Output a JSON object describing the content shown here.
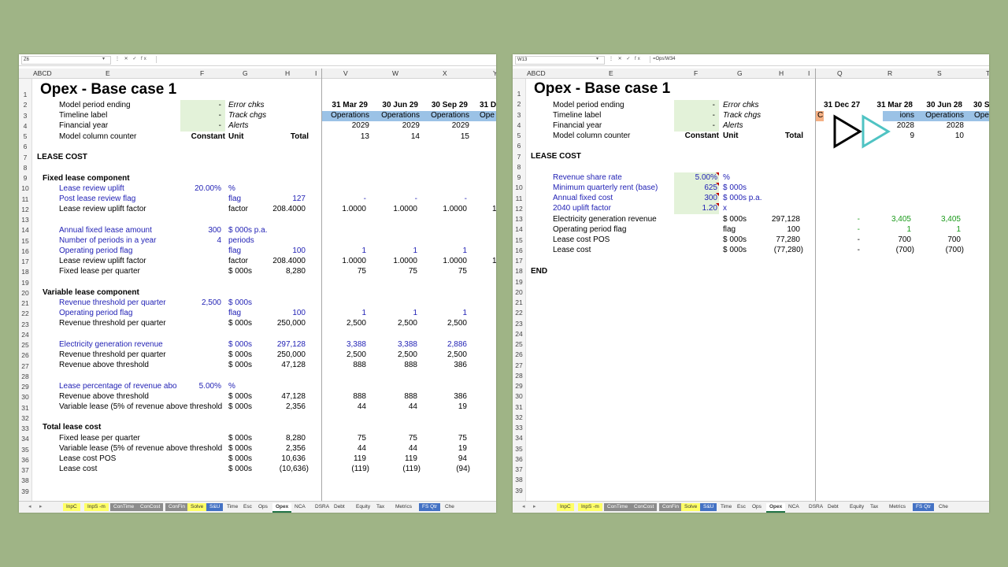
{
  "left": {
    "namebox": "Z6",
    "formula": "",
    "formula_icons": "⋮ ✕ ✓ fx",
    "columns": [
      "ABCD",
      "E",
      "F",
      "G",
      "H",
      "I",
      "V",
      "W",
      "X",
      "Y"
    ],
    "title": "Opex - Base case 1",
    "header_rows": {
      "model_period_ending": "Model period ending",
      "timeline_label": "Timeline label",
      "financial_year": "Financial year",
      "model_column_counter": "Model column counter",
      "dash": "-",
      "error_chks": "Error chks",
      "track_chgs": "Track chgs",
      "alerts": "Alerts",
      "constant": "Constant",
      "unit": "Unit",
      "total": "Total"
    },
    "timeline": [
      {
        "date": "31 Mar 29",
        "label": "Operations",
        "year": "2029",
        "counter": "13"
      },
      {
        "date": "30 Jun 29",
        "label": "Operations",
        "year": "2029",
        "counter": "14"
      },
      {
        "date": "30 Sep 29",
        "label": "Operations",
        "year": "2029",
        "counter": "15"
      },
      {
        "date": "31 D",
        "label": "Ope",
        "year": "",
        "counter": ""
      }
    ],
    "section_title": "LEASE COST",
    "fixed": {
      "heading": "Fixed lease component",
      "review_uplift": {
        "label": "Lease review uplift",
        "const": "20.00%",
        "unit": "%"
      },
      "post_review_flag": {
        "label": "Post lease review flag",
        "unit": "flag",
        "total": "127",
        "vals": [
          "-",
          "-",
          "-"
        ]
      },
      "review_factor": {
        "label": "Lease review uplift factor",
        "unit": "factor",
        "total": "208.4000",
        "vals": [
          "1.0000",
          "1.0000",
          "1.0000",
          "1"
        ]
      },
      "annual_fixed": {
        "label": "Annual fixed lease amount",
        "const": "300",
        "unit": "$ 000s p.a."
      },
      "periods": {
        "label": "Number of periods in a year",
        "const": "4",
        "unit": "periods"
      },
      "op_flag": {
        "label": "Operating period flag",
        "unit": "flag",
        "total": "100",
        "vals": [
          "1",
          "1",
          "1"
        ]
      },
      "review_factor2": {
        "label": "Lease review uplift factor",
        "unit": "factor",
        "total": "208.4000",
        "vals": [
          "1.0000",
          "1.0000",
          "1.0000",
          "1"
        ]
      },
      "fixed_per_q": {
        "label": "Fixed lease per quarter",
        "unit": "$ 000s",
        "total": "8,280",
        "vals": [
          "75",
          "75",
          "75"
        ]
      }
    },
    "variable": {
      "heading": "Variable lease component",
      "threshold_input": {
        "label": "Revenue threshold per quarter",
        "const": "2,500",
        "unit": "$ 000s"
      },
      "op_flag": {
        "label": "Operating period flag",
        "unit": "flag",
        "total": "100",
        "vals": [
          "1",
          "1",
          "1"
        ]
      },
      "threshold_calc": {
        "label": "Revenue threshold per quarter",
        "unit": "$ 000s",
        "total": "250,000",
        "vals": [
          "2,500",
          "2,500",
          "2,500"
        ]
      },
      "elec_rev": {
        "label": "Electricity generation revenue",
        "unit": "$ 000s",
        "total": "297,128",
        "vals": [
          "3,388",
          "3,388",
          "2,886"
        ]
      },
      "threshold_calc2": {
        "label": "Revenue threshold per quarter",
        "unit": "$ 000s",
        "total": "250,000",
        "vals": [
          "2,500",
          "2,500",
          "2,500"
        ]
      },
      "above": {
        "label": "Revenue above threshold",
        "unit": "$ 000s",
        "total": "47,128",
        "vals": [
          "888",
          "888",
          "386"
        ]
      },
      "pct": {
        "label": "Lease percentage of revenue abo",
        "const": "5.00%",
        "unit": "%"
      },
      "above2": {
        "label": "Revenue above threshold",
        "unit": "$ 000s",
        "total": "47,128",
        "vals": [
          "888",
          "888",
          "386"
        ]
      },
      "var_lease": {
        "label": "Variable lease (5% of revenue above threshold",
        "unit": "$ 000s",
        "total": "2,356",
        "vals": [
          "44",
          "44",
          "19"
        ]
      }
    },
    "total": {
      "heading": "Total lease cost",
      "fixed": {
        "label": "Fixed lease per quarter",
        "unit": "$ 000s",
        "total": "8,280",
        "vals": [
          "75",
          "75",
          "75"
        ]
      },
      "variable": {
        "label": "Variable lease (5% of revenue above threshold",
        "unit": "$ 000s",
        "total": "2,356",
        "vals": [
          "44",
          "44",
          "19"
        ]
      },
      "pos": {
        "label": "Lease cost POS",
        "unit": "$ 000s",
        "total": "10,636",
        "vals": [
          "119",
          "119",
          "94"
        ]
      },
      "cost": {
        "label": "Lease cost",
        "unit": "$ 000s",
        "total": "(10,636)",
        "vals": [
          "(119)",
          "(119)",
          "(94)"
        ]
      }
    },
    "tabs": [
      "InpC",
      "InpS -m",
      "ConTime",
      "ConCost",
      "ConFin",
      "Solve",
      "S&U",
      "Time",
      "Esc",
      "Ops",
      "Opex",
      "NCA",
      "DSRA",
      "Debt",
      "Equity",
      "Tax",
      "Metrics",
      "FS Qtr",
      "Che"
    ]
  },
  "right": {
    "namebox": "W13",
    "formula": "=Ops!W34",
    "formula_icons": "⋮ ✕ ✓ fx",
    "columns": [
      "ABCD",
      "E",
      "F",
      "G",
      "H",
      "I",
      "Q",
      "R",
      "S",
      "T"
    ],
    "title": "Opex - Base case 1",
    "timeline": [
      {
        "date": "31 Dec 27",
        "label": "C",
        "year": "",
        "counter": ""
      },
      {
        "date": "31 Mar 28",
        "label": "ions",
        "year": "2028",
        "counter": "9"
      },
      {
        "date": "30 Jun 28",
        "label": "Operations",
        "year": "2028",
        "counter": "10"
      },
      {
        "date": "30 S",
        "label": "Ope",
        "year": "",
        "counter": ""
      }
    ],
    "section_title": "LEASE COST",
    "rows": {
      "rev_share": {
        "label": "Revenue share rate",
        "const": "5.00%",
        "unit": "%"
      },
      "min_rent": {
        "label": "Minimum quarterly rent (base)",
        "const": "625",
        "unit": "$ 000s"
      },
      "annual_fixed": {
        "label": "Annual fixed cost",
        "const": "300",
        "unit": "$ 000s p.a."
      },
      "uplift2040": {
        "label": "2040 uplift factor",
        "const": "1.20",
        "unit": "x"
      },
      "elec_rev": {
        "label": "Electricity generation revenue",
        "unit": "$ 000s",
        "total": "297,128",
        "vals": [
          "-",
          "3,405",
          "3,405"
        ]
      },
      "op_flag": {
        "label": "Operating period flag",
        "unit": "flag",
        "total": "100",
        "vals": [
          "-",
          "1",
          "1"
        ]
      },
      "pos": {
        "label": "Lease cost POS",
        "unit": "$ 000s",
        "total": "77,280",
        "vals": [
          "-",
          "700",
          "700"
        ]
      },
      "cost": {
        "label": "Lease cost",
        "unit": "$ 000s",
        "total": "(77,280)",
        "vals": [
          "-",
          "(700)",
          "(700)"
        ]
      }
    },
    "end": "END",
    "tabs": [
      "InpC",
      "InpS -m",
      "ConTime",
      "ConCost",
      "ConFin",
      "Solve",
      "S&U",
      "Time",
      "Esc",
      "Ops",
      "Opex",
      "NCA",
      "DSRA",
      "Debt",
      "Equity",
      "Tax",
      "Metrics",
      "FS Qtr",
      "Che"
    ]
  },
  "colors": {
    "background": "#9fb486",
    "input_fill": "#e3f2d9",
    "timeline_fill": "#9bc2e6",
    "input_text": "#1f1fb4",
    "link_text": "#1a9a1a"
  },
  "overlay_icon": "play-next-icon"
}
